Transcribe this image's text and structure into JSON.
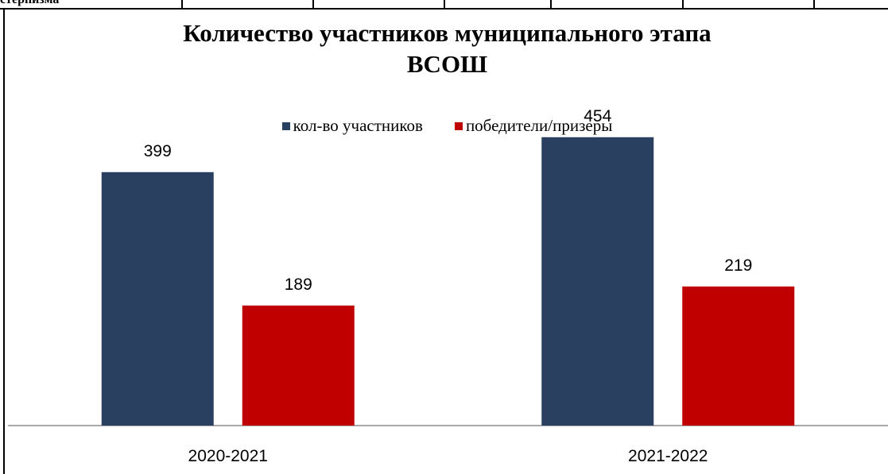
{
  "document": {
    "cut_table_text": "стерпизма"
  },
  "chart_data": {
    "type": "bar",
    "title_lines": [
      "Количество участников муниципального этапа",
      "ВСОШ"
    ],
    "categories": [
      "2020-2021",
      "2021-2022"
    ],
    "series": [
      {
        "name": "кол-во участников",
        "values": [
          399,
          454
        ],
        "color": "#2a4060"
      },
      {
        "name": "победители/призеры",
        "values": [
          189,
          219
        ],
        "color": "#c00000"
      }
    ],
    "data_labels": true,
    "xlabel": "",
    "ylabel": "",
    "ylim": [
      0,
      500
    ],
    "grid": false,
    "y_axis_visible": false,
    "legend_position": "top"
  }
}
